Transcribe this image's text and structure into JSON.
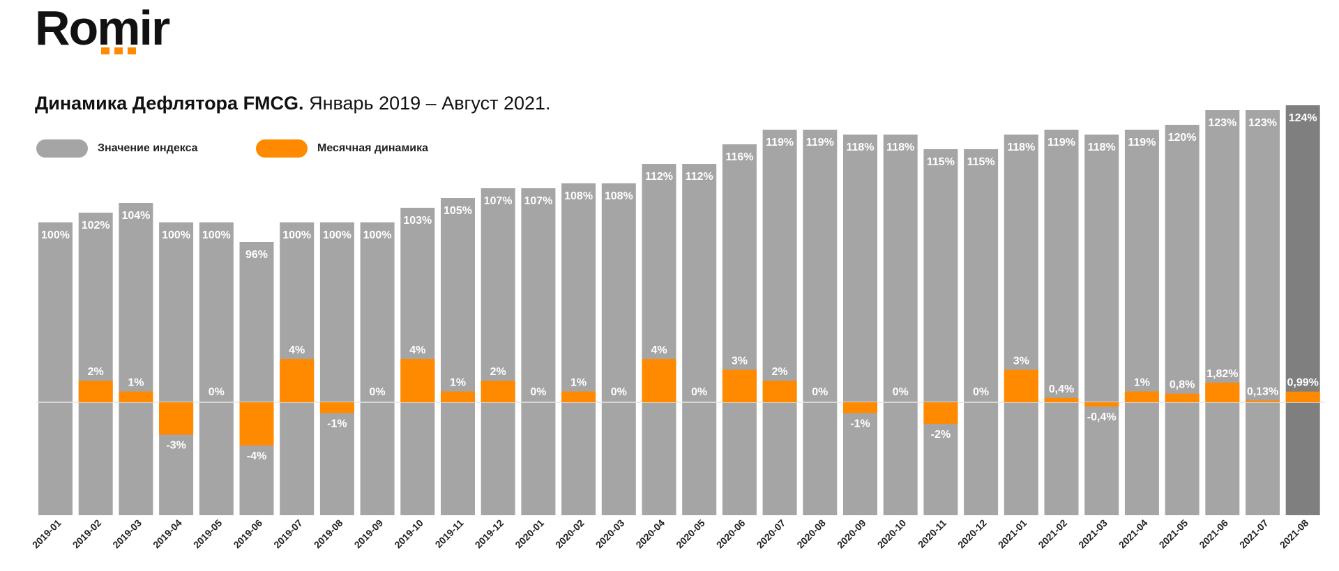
{
  "logo": {
    "text": "Romir"
  },
  "title": {
    "bold": "Динамика Дефлятора FMCG.",
    "rest": " Январь 2019 – Август 2021."
  },
  "legend": [
    {
      "label": "Значение индекса",
      "color": "#a5a5a5"
    },
    {
      "label": "Месячная динамика",
      "color": "#ff8a00"
    }
  ],
  "colors": {
    "bar": "#a5a5a5",
    "bar_last": "#7f7f7f",
    "change": "#ff8a00"
  },
  "chart_data": {
    "type": "bar",
    "categories": [
      "2019-01",
      "2019-02",
      "2019-03",
      "2019-04",
      "2019-05",
      "2019-06",
      "2019-07",
      "2019-08",
      "2019-09",
      "2019-10",
      "2019-11",
      "2019-12",
      "2020-01",
      "2020-02",
      "2020-03",
      "2020-04",
      "2020-05",
      "2020-06",
      "2020-07",
      "2020-08",
      "2020-09",
      "2020-10",
      "2020-11",
      "2020-12",
      "2021-01",
      "2021-02",
      "2021-03",
      "2021-04",
      "2021-05",
      "2021-06",
      "2021-07",
      "2021-08"
    ],
    "series": [
      {
        "name": "Значение индекса",
        "values": [
          100,
          102,
          104,
          100,
          100,
          96,
          100,
          100,
          100,
          103,
          105,
          107,
          107,
          108,
          108,
          112,
          112,
          116,
          119,
          119,
          118,
          118,
          115,
          115,
          118,
          119,
          118,
          119,
          120,
          123,
          123,
          124
        ],
        "labels": [
          "100%",
          "102%",
          "104%",
          "100%",
          "100%",
          "96%",
          "100%",
          "100%",
          "100%",
          "103%",
          "105%",
          "107%",
          "107%",
          "108%",
          "108%",
          "112%",
          "112%",
          "116%",
          "119%",
          "119%",
          "118%",
          "118%",
          "115%",
          "115%",
          "118%",
          "119%",
          "118%",
          "119%",
          "120%",
          "123%",
          "123%",
          "124%"
        ]
      },
      {
        "name": "Месячная динамика",
        "values": [
          0,
          2,
          1,
          -3,
          0,
          -4,
          4,
          -1,
          0,
          4,
          1,
          2,
          0,
          1,
          0,
          4,
          0,
          3,
          2,
          0,
          -1,
          0,
          -2,
          0,
          3,
          0.4,
          -0.4,
          1,
          0.8,
          1.82,
          0.13,
          0.99
        ],
        "labels": [
          "",
          "2%",
          "1%",
          "-3%",
          "0%",
          "-4%",
          "4%",
          "-1%",
          "0%",
          "4%",
          "1%",
          "2%",
          "0%",
          "1%",
          "0%",
          "4%",
          "0%",
          "3%",
          "2%",
          "0%",
          "-1%",
          "0%",
          "-2%",
          "0%",
          "3%",
          "0,4%",
          "-0,4%",
          "1%",
          "0,8%",
          "1,82%",
          "0,13%",
          "0,99%"
        ]
      }
    ]
  }
}
